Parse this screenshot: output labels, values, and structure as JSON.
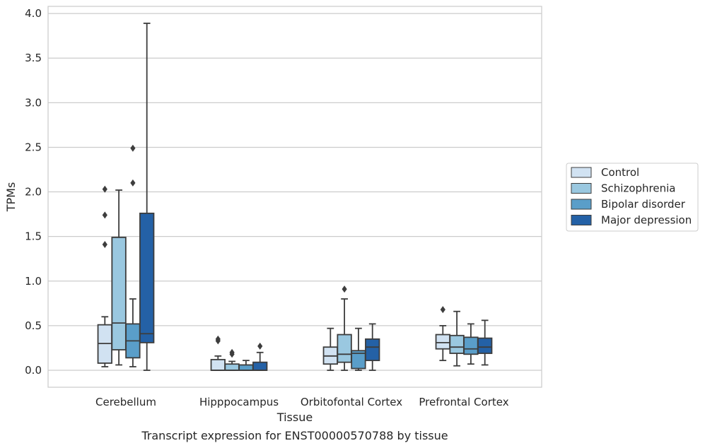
{
  "chart_data": {
    "type": "boxplot",
    "title": "",
    "caption": "Transcript expression for ENST00000570788 by tissue",
    "xlabel": "Tissue",
    "ylabel": "TPMs",
    "ylim": [
      -0.19,
      4.08
    ],
    "yticks": [
      0.0,
      0.5,
      1.0,
      1.5,
      2.0,
      2.5,
      3.0,
      3.5,
      4.0
    ],
    "ytick_labels": [
      "0.0",
      "0.5",
      "1.0",
      "1.5",
      "2.0",
      "2.5",
      "3.0",
      "3.5",
      "4.0"
    ],
    "grid": "y",
    "legend_position": "right",
    "categories": [
      "Cerebellum",
      "Hipppocampus",
      "Orbitofontal Cortex",
      "Prefrontal Cortex"
    ],
    "series": [
      {
        "name": "Control",
        "color": "#d1e2f2",
        "boxes": [
          {
            "whislo": 0.04,
            "q1": 0.08,
            "med": 0.3,
            "q3": 0.51,
            "whishi": 0.6,
            "fliers": [
              1.41,
              1.74,
              2.03
            ]
          },
          {
            "whislo": 0.0,
            "q1": 0.0,
            "med": 0.0,
            "q3": 0.12,
            "whishi": 0.16,
            "fliers": [
              0.33,
              0.35
            ]
          },
          {
            "whislo": 0.0,
            "q1": 0.07,
            "med": 0.16,
            "q3": 0.26,
            "whishi": 0.47,
            "fliers": []
          },
          {
            "whislo": 0.11,
            "q1": 0.24,
            "med": 0.31,
            "q3": 0.4,
            "whishi": 0.5,
            "fliers": [
              0.68
            ]
          }
        ]
      },
      {
        "name": "Schizophrenia",
        "color": "#9ac8e0",
        "boxes": [
          {
            "whislo": 0.06,
            "q1": 0.23,
            "med": 0.53,
            "q3": 1.49,
            "whishi": 2.02,
            "fliers": []
          },
          {
            "whislo": 0.0,
            "q1": 0.0,
            "med": 0.0,
            "q3": 0.07,
            "whishi": 0.1,
            "fliers": [
              0.18,
              0.2
            ]
          },
          {
            "whislo": 0.0,
            "q1": 0.09,
            "med": 0.18,
            "q3": 0.4,
            "whishi": 0.8,
            "fliers": [
              0.91
            ]
          },
          {
            "whislo": 0.05,
            "q1": 0.19,
            "med": 0.26,
            "q3": 0.39,
            "whishi": 0.66,
            "fliers": []
          }
        ]
      },
      {
        "name": "Bipolar disorder",
        "color": "#5a9ec9",
        "boxes": [
          {
            "whislo": 0.04,
            "q1": 0.14,
            "med": 0.33,
            "q3": 0.52,
            "whishi": 0.8,
            "fliers": [
              2.1,
              2.49
            ]
          },
          {
            "whislo": 0.0,
            "q1": 0.0,
            "med": 0.0,
            "q3": 0.06,
            "whishi": 0.11,
            "fliers": []
          },
          {
            "whislo": 0.0,
            "q1": 0.02,
            "med": 0.19,
            "q3": 0.22,
            "whishi": 0.47,
            "fliers": []
          },
          {
            "whislo": 0.07,
            "q1": 0.18,
            "med": 0.24,
            "q3": 0.37,
            "whishi": 0.52,
            "fliers": []
          }
        ]
      },
      {
        "name": "Major depression",
        "color": "#2461a6",
        "boxes": [
          {
            "whislo": 0.0,
            "q1": 0.31,
            "med": 0.41,
            "q3": 1.76,
            "whishi": 3.89,
            "fliers": []
          },
          {
            "whislo": 0.0,
            "q1": 0.0,
            "med": 0.0,
            "q3": 0.09,
            "whishi": 0.2,
            "fliers": [
              0.27
            ]
          },
          {
            "whislo": 0.0,
            "q1": 0.11,
            "med": 0.26,
            "q3": 0.35,
            "whishi": 0.52,
            "fliers": []
          },
          {
            "whislo": 0.06,
            "q1": 0.19,
            "med": 0.26,
            "q3": 0.36,
            "whishi": 0.56,
            "fliers": []
          }
        ]
      }
    ]
  }
}
